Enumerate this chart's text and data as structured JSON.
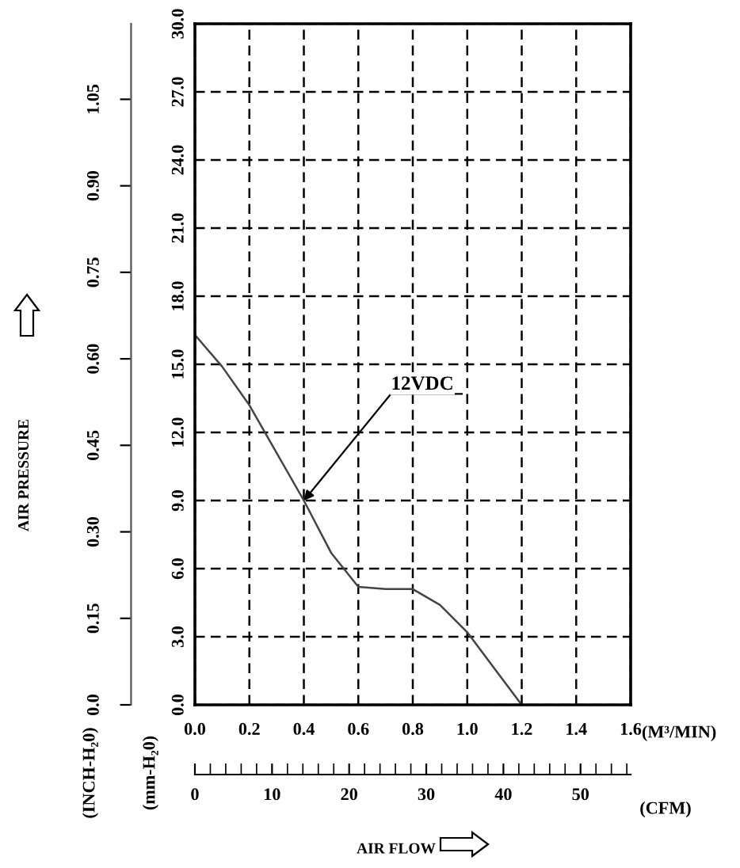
{
  "chart_data": {
    "type": "line",
    "ylabel": "AIR PRESSURE",
    "y2label": "(mm-H₂0)",
    "xlabel": "AIR FLOW",
    "x2label": "(CFM)",
    "x": [
      0,
      0.1,
      0.2,
      0.3,
      0.4,
      0.5,
      0.6,
      0.7,
      0.8,
      0.9,
      1.0,
      1.1,
      1.2
    ],
    "series": [
      {
        "color": "#444444",
        "axis": "y2",
        "values": [
          16.3,
          14.9,
          13.2,
          11.1,
          9.0,
          6.7,
          5.2,
          5.1,
          5.1,
          4.4,
          3.2,
          1.6,
          0
        ]
      }
    ],
    "xlim": [
      0,
      1.6
    ],
    "xticks": [
      {
        "value": 0,
        "label": "0.0"
      },
      0.2,
      0.4,
      0.6,
      0.8,
      {
        "value": 1,
        "label": "1.0"
      },
      1.2,
      1.4,
      1.6
    ],
    "y2lim": [
      0,
      30
    ],
    "y2ticks": [
      {
        "value": 0,
        "label": "0.0"
      },
      {
        "value": 3,
        "label": "3.0"
      },
      {
        "value": 6,
        "label": "6.0"
      },
      {
        "value": 9,
        "label": "9.0"
      },
      {
        "value": 12,
        "label": "12.0"
      },
      {
        "value": 15,
        "label": "15.0"
      },
      {
        "value": 18,
        "label": "18.0"
      },
      {
        "value": 21,
        "label": "21.0"
      },
      {
        "value": 24,
        "label": "24.0"
      },
      {
        "value": 27,
        "label": "27.0"
      },
      {
        "value": 30,
        "label": "30.0"
      }
    ],
    "ylim": [
      0,
      1.181
    ],
    "yticks": [
      {
        "value": 0,
        "label": "0.0"
      },
      0.15,
      {
        "value": 0.3,
        "label": "0.30"
      },
      0.45,
      {
        "value": 0.6,
        "label": "0.60"
      },
      0.75,
      {
        "value": 0.9,
        "label": "0.90"
      },
      1.05
    ],
    "x2lim": [
      0,
      56.5
    ],
    "x2ticks": [
      0,
      10,
      20,
      30,
      40,
      50
    ],
    "annotations": [
      {
        "text": "12VDC",
        "x": 0.4,
        "y": 0.354
      },
      "(INCH-H₂0)",
      "(M³/MIN)"
    ],
    "grid": true,
    "marker": "none",
    "line_style": "solid",
    "legend": false
  }
}
